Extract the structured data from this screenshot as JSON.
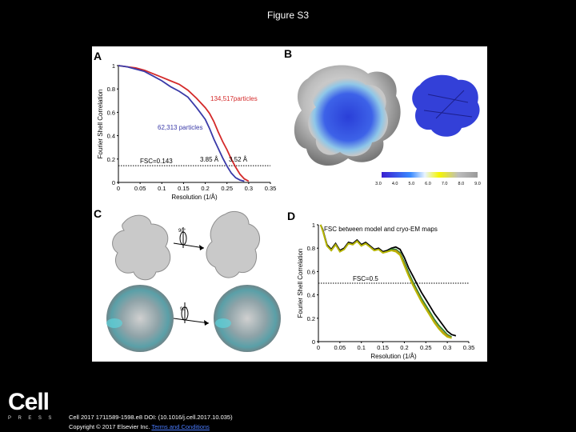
{
  "figure_title": "Figure S3",
  "panels": {
    "a_label": "A",
    "b_label": "B",
    "c_label": "C",
    "d_label": "D"
  },
  "panel_b": {
    "colorbar_ticks": [
      "3.0",
      "4.0",
      "5.0",
      "6.0",
      "7.0",
      "8.0",
      "9.0"
    ]
  },
  "panel_c": {
    "rotation_label_top": "90°",
    "rotation_label_bottom": "90°"
  },
  "footer": {
    "logo_cell": "Cell",
    "logo_press": "PRESS",
    "citation_line1": "Cell 2017 1711589-1598.e8 DOI: (10.1016/j.cell.2017.10.035)",
    "citation_prefix": "Copyright © 2017 Elsevier Inc.",
    "citation_link": "Terms and Conditions"
  },
  "chart_data": [
    {
      "id": "A",
      "type": "line",
      "title": "",
      "xlabel": "Resolution (1/Å)",
      "ylabel": "Fourier Shell Correlation",
      "xlim": [
        0,
        0.35
      ],
      "ylim": [
        0,
        1
      ],
      "xticks": [
        "0",
        "0.05",
        "0.1",
        "0.15",
        "0.2",
        "0.25",
        "0.3",
        "0.35"
      ],
      "yticks": [
        "0",
        "0.2",
        "0.4",
        "0.6",
        "0.8",
        "1"
      ],
      "threshold": {
        "value": 0.143,
        "label": "FSC=0.143"
      },
      "annotations": [
        "3.85 Å",
        "3.52 Å"
      ],
      "series": [
        {
          "name": "134,517particles",
          "color": "#d42a2a",
          "x": [
            0,
            0.02,
            0.04,
            0.06,
            0.08,
            0.1,
            0.12,
            0.14,
            0.16,
            0.18,
            0.2,
            0.21,
            0.22,
            0.23,
            0.24,
            0.25,
            0.26,
            0.27,
            0.28,
            0.29,
            0.3
          ],
          "y": [
            1.0,
            0.99,
            0.98,
            0.96,
            0.93,
            0.9,
            0.87,
            0.84,
            0.79,
            0.72,
            0.64,
            0.59,
            0.52,
            0.43,
            0.35,
            0.28,
            0.2,
            0.13,
            0.07,
            0.03,
            0.01
          ]
        },
        {
          "name": "62,313 particles",
          "color": "#3a3aa8",
          "x": [
            0,
            0.02,
            0.04,
            0.06,
            0.08,
            0.1,
            0.12,
            0.14,
            0.16,
            0.18,
            0.2,
            0.21,
            0.22,
            0.23,
            0.24,
            0.25,
            0.26,
            0.27,
            0.28,
            0.29
          ],
          "y": [
            1.0,
            0.99,
            0.97,
            0.95,
            0.91,
            0.87,
            0.82,
            0.78,
            0.73,
            0.64,
            0.54,
            0.46,
            0.37,
            0.29,
            0.21,
            0.14,
            0.08,
            0.04,
            0.02,
            0.01
          ]
        }
      ]
    },
    {
      "id": "D",
      "type": "line",
      "title": "FSC between model and cryo-EM maps",
      "xlabel": "Resolution (1/Å)",
      "ylabel": "Fourier Shell Correlation",
      "xlim": [
        0,
        0.35
      ],
      "ylim": [
        0,
        1
      ],
      "xticks": [
        "0",
        "0.05",
        "0.1",
        "0.15",
        "0.2",
        "0.25",
        "0.3",
        "0.35"
      ],
      "yticks": [
        "0",
        "0.2",
        "0.4",
        "0.6",
        "0.8",
        "1"
      ],
      "threshold": {
        "value": 0.5,
        "label": "FSC=0.5"
      },
      "series": [
        {
          "color": "#000000",
          "x": [
            0.005,
            0.01,
            0.02,
            0.03,
            0.04,
            0.05,
            0.06,
            0.07,
            0.08,
            0.09,
            0.1,
            0.11,
            0.12,
            0.13,
            0.14,
            0.15,
            0.16,
            0.17,
            0.18,
            0.19,
            0.2,
            0.21,
            0.22,
            0.23,
            0.24,
            0.25,
            0.26,
            0.27,
            0.28,
            0.29,
            0.3,
            0.31,
            0.32
          ],
          "y": [
            1.0,
            0.96,
            0.83,
            0.79,
            0.84,
            0.78,
            0.8,
            0.85,
            0.84,
            0.87,
            0.83,
            0.85,
            0.82,
            0.79,
            0.8,
            0.77,
            0.78,
            0.8,
            0.81,
            0.79,
            0.72,
            0.63,
            0.56,
            0.49,
            0.42,
            0.36,
            0.3,
            0.24,
            0.19,
            0.14,
            0.09,
            0.06,
            0.05
          ]
        },
        {
          "color": "#2e8b2e",
          "x": [
            0.005,
            0.01,
            0.02,
            0.03,
            0.04,
            0.05,
            0.06,
            0.07,
            0.08,
            0.09,
            0.1,
            0.11,
            0.12,
            0.13,
            0.14,
            0.15,
            0.16,
            0.17,
            0.18,
            0.19,
            0.2,
            0.21,
            0.22,
            0.23,
            0.24,
            0.25,
            0.26,
            0.27,
            0.28,
            0.29,
            0.3,
            0.31
          ],
          "y": [
            1.0,
            0.95,
            0.82,
            0.78,
            0.83,
            0.77,
            0.79,
            0.84,
            0.83,
            0.86,
            0.82,
            0.84,
            0.81,
            0.78,
            0.79,
            0.76,
            0.77,
            0.79,
            0.79,
            0.76,
            0.68,
            0.59,
            0.51,
            0.44,
            0.37,
            0.31,
            0.25,
            0.19,
            0.14,
            0.1,
            0.06,
            0.04
          ]
        },
        {
          "color": "#c98a1a",
          "x": [
            0.005,
            0.01,
            0.02,
            0.03,
            0.04,
            0.05,
            0.06,
            0.07,
            0.08,
            0.09,
            0.1,
            0.11,
            0.12,
            0.13,
            0.14,
            0.15,
            0.16,
            0.17,
            0.18,
            0.19,
            0.2,
            0.21,
            0.22,
            0.23,
            0.24,
            0.25,
            0.26,
            0.27,
            0.28,
            0.29,
            0.3,
            0.31
          ],
          "y": [
            1.0,
            0.95,
            0.82,
            0.78,
            0.83,
            0.77,
            0.79,
            0.84,
            0.83,
            0.86,
            0.82,
            0.84,
            0.81,
            0.78,
            0.79,
            0.76,
            0.77,
            0.78,
            0.78,
            0.75,
            0.66,
            0.57,
            0.49,
            0.42,
            0.35,
            0.29,
            0.23,
            0.17,
            0.12,
            0.08,
            0.05,
            0.03
          ]
        },
        {
          "color": "#b8b800",
          "x": [
            0.005,
            0.01,
            0.02,
            0.03,
            0.04,
            0.05,
            0.06,
            0.07,
            0.08,
            0.09,
            0.1,
            0.11,
            0.12,
            0.13,
            0.14,
            0.15,
            0.16,
            0.17,
            0.18,
            0.19,
            0.2,
            0.21,
            0.22,
            0.23,
            0.24,
            0.25,
            0.26,
            0.27,
            0.28,
            0.29,
            0.3,
            0.31
          ],
          "y": [
            1.0,
            0.95,
            0.82,
            0.78,
            0.83,
            0.77,
            0.79,
            0.84,
            0.83,
            0.86,
            0.82,
            0.84,
            0.81,
            0.78,
            0.79,
            0.76,
            0.77,
            0.78,
            0.77,
            0.74,
            0.65,
            0.56,
            0.48,
            0.41,
            0.34,
            0.28,
            0.22,
            0.16,
            0.11,
            0.07,
            0.04,
            0.03
          ]
        }
      ]
    }
  ]
}
